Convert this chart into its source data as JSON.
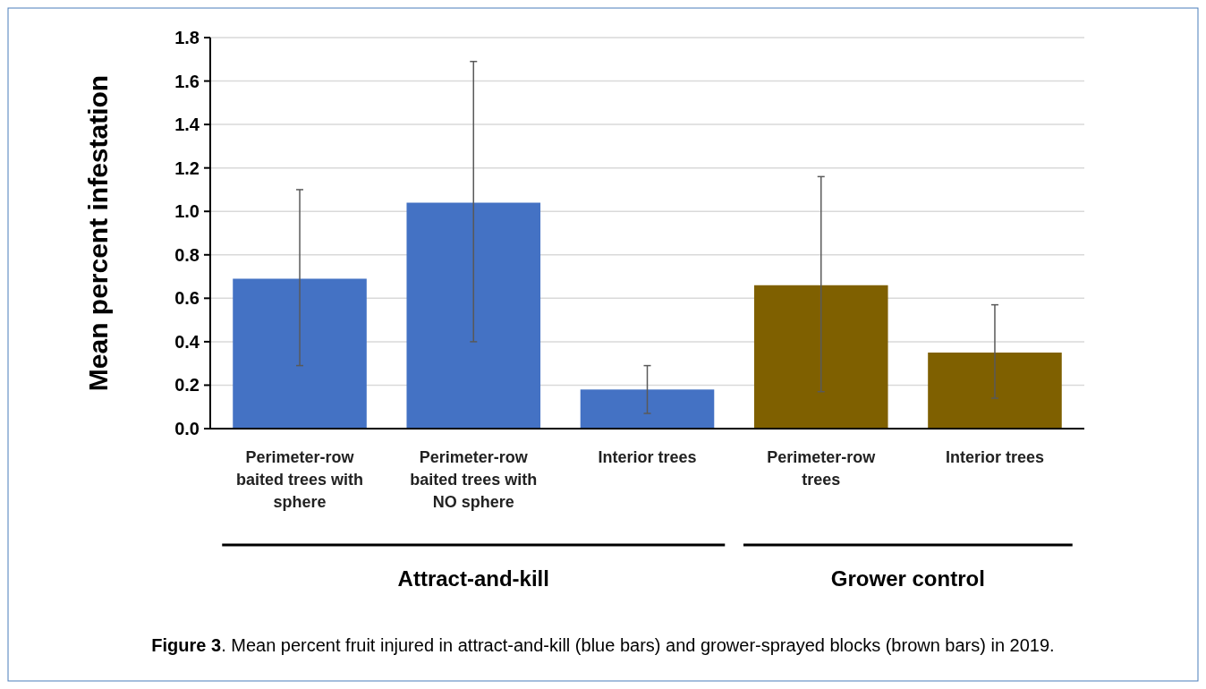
{
  "chart_data": {
    "type": "bar",
    "ylabel": "Mean percent infestation",
    "categories": [
      "Perimeter-row baited trees with sphere",
      "Perimeter-row baited trees with NO sphere",
      "Interior trees",
      "Perimeter-row trees",
      "Interior trees"
    ],
    "values": [
      0.69,
      1.04,
      0.18,
      0.66,
      0.35
    ],
    "colors": [
      "#4472c4",
      "#4472c4",
      "#4472c4",
      "#7f6000",
      "#7f6000"
    ],
    "errors": [
      [
        0.29,
        1.1
      ],
      [
        0.4,
        1.69
      ],
      [
        0.07,
        0.29
      ],
      [
        0.17,
        1.16
      ],
      [
        0.14,
        0.57
      ]
    ],
    "ylim": [
      0,
      1.8
    ],
    "yticks": [
      {
        "value": 0,
        "label": "0.0"
      },
      {
        "value": 0.2,
        "label": "0.2"
      },
      {
        "value": 0.4,
        "label": "0.4"
      },
      {
        "value": 0.6,
        "label": "0.6"
      },
      {
        "value": 0.8,
        "label": "0.8"
      },
      {
        "value": 1,
        "label": "1.0"
      },
      {
        "value": 1.2,
        "label": "1.2"
      },
      {
        "value": 1.4,
        "label": "1.4"
      },
      {
        "value": 1.6,
        "label": "1.6"
      },
      {
        "value": 1.8,
        "label": "1.8"
      }
    ],
    "grid": "y",
    "annotations": [
      "Attract-and-kill",
      "Grower control",
      "Figure 3. Mean percent fruit injured in attract-and-kill (blue bars) and grower-sprayed blocks (brown bars) in 2019."
    ]
  }
}
